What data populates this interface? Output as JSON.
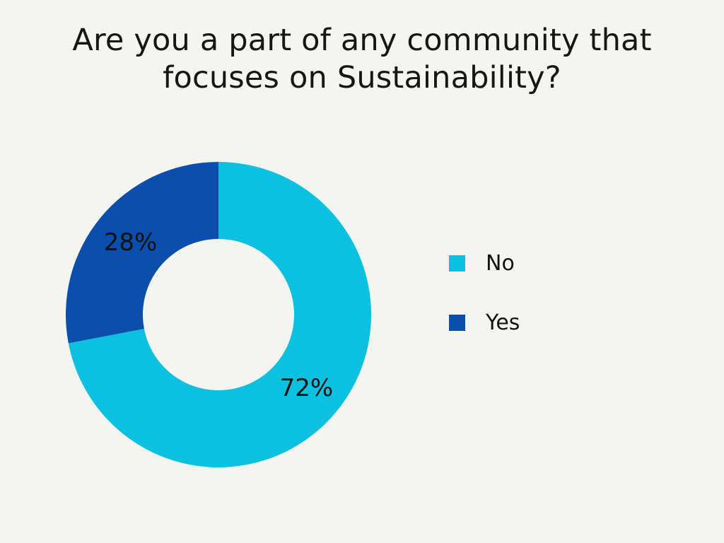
{
  "colors": {
    "background": "#f4f4f1",
    "title_text": "#161616",
    "legend_text": "#121212"
  },
  "chart_data": {
    "type": "pie",
    "variant": "donut",
    "title": "Are you a part of any community that focuses on Sustainability?",
    "series": [
      {
        "label": "No",
        "value": 72,
        "display": "72%",
        "color": "#0cc0df"
      },
      {
        "label": "Yes",
        "value": 28,
        "display": "28%",
        "color": "#0a4fad"
      }
    ],
    "start_angle_deg": -90,
    "direction": "clockwise",
    "inner_radius_ratio": 0.495,
    "slice_label_color": "#111111",
    "legend_position": "right"
  }
}
